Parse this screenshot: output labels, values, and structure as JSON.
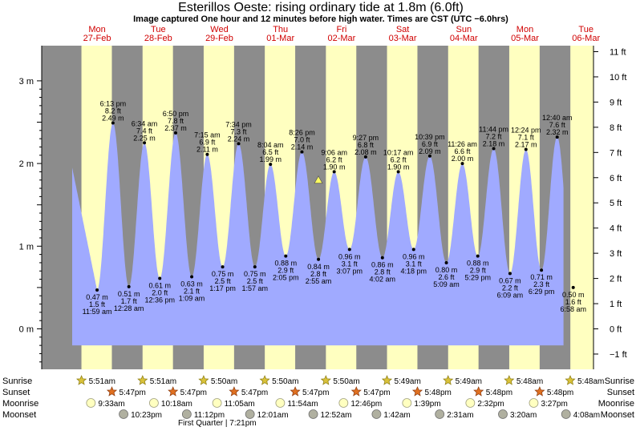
{
  "title": "Esterillos Oeste: rising  ordinary tide at 1.8m (6.0ft)",
  "subtitle": "Image captured One hour and 12 minutes before high water. Times are CST (UTC −6.0hrs)",
  "colors": {
    "night": "#8c8c8c",
    "day": "#ffffc0",
    "water": "#a0aaff",
    "day_label": "#d00000"
  },
  "days": [
    {
      "name": "Mon",
      "date": "27-Feb"
    },
    {
      "name": "Tue",
      "date": "28-Feb"
    },
    {
      "name": "Wed",
      "date": "29-Feb"
    },
    {
      "name": "Thu",
      "date": "01-Mar"
    },
    {
      "name": "Fri",
      "date": "02-Mar"
    },
    {
      "name": "Sat",
      "date": "03-Mar"
    },
    {
      "name": "Sun",
      "date": "04-Mar"
    },
    {
      "name": "Mon",
      "date": "05-Mar"
    },
    {
      "name": "Tue",
      "date": "06-Mar"
    }
  ],
  "chart_data": {
    "type": "area",
    "title": "Esterillos Oeste: rising  ordinary tide at 1.8m (6.0ft)",
    "ylabel_left_ticks": [
      "0 m",
      "1 m",
      "2 m",
      "3 m"
    ],
    "ylabel_right_ticks": [
      "−1 ft",
      "0 ft",
      "1 ft",
      "2 ft",
      "3 ft",
      "4 ft",
      "5 ft",
      "6 ft",
      "7 ft",
      "8 ft",
      "9 ft",
      "10 ft",
      "11 ft"
    ],
    "ylim_m": [
      -0.45,
      3.4
    ],
    "x_unit": "days since 27-Feb 00:00 CST",
    "xlim": [
      -0.08,
      9.0
    ],
    "extremes": [
      {
        "t": "11:59 am",
        "m": 0.47,
        "ft": "1.5 ft",
        "mlab": "0.47 m",
        "type": "low"
      },
      {
        "t": "6:13 pm",
        "m": 2.49,
        "ft": "8.2 ft",
        "mlab": "2.49 m",
        "type": "high"
      },
      {
        "t": "12:28 am",
        "m": 0.51,
        "ft": "1.7 ft",
        "mlab": "0.51 m",
        "type": "low"
      },
      {
        "t": "6:34 am",
        "m": 2.25,
        "ft": "7.4 ft",
        "mlab": "2.25 m",
        "type": "high"
      },
      {
        "t": "12:36 pm",
        "m": 0.61,
        "ft": "2.0 ft",
        "mlab": "0.61 m",
        "type": "low"
      },
      {
        "t": "6:50 pm",
        "m": 2.37,
        "ft": "7.8 ft",
        "mlab": "2.37 m",
        "type": "high"
      },
      {
        "t": "1:09 am",
        "m": 0.63,
        "ft": "2.1 ft",
        "mlab": "0.63 m",
        "type": "low"
      },
      {
        "t": "7:15 am",
        "m": 2.11,
        "ft": "6.9 ft",
        "mlab": "2.11 m",
        "type": "high"
      },
      {
        "t": "1:17 pm",
        "m": 0.75,
        "ft": "2.5 ft",
        "mlab": "0.75 m",
        "type": "low"
      },
      {
        "t": "7:34 pm",
        "m": 2.24,
        "ft": "7.3 ft",
        "mlab": "2.24 m",
        "type": "high"
      },
      {
        "t": "1:57 am",
        "m": 0.75,
        "ft": "2.5 ft",
        "mlab": "0.75 m",
        "type": "low"
      },
      {
        "t": "8:04 am",
        "m": 1.99,
        "ft": "6.5 ft",
        "mlab": "1.99 m",
        "type": "high"
      },
      {
        "t": "2:05 pm",
        "m": 0.88,
        "ft": "2.9 ft",
        "mlab": "0.88 m",
        "type": "low"
      },
      {
        "t": "8:26 pm",
        "m": 2.14,
        "ft": "7.0 ft",
        "mlab": "2.14 m",
        "type": "high"
      },
      {
        "t": "2:55 am",
        "m": 0.84,
        "ft": "2.8 ft",
        "mlab": "0.84 m",
        "type": "low"
      },
      {
        "t": "9:06 am",
        "m": 1.9,
        "ft": "6.2 ft",
        "mlab": "1.90 m",
        "type": "high"
      },
      {
        "t": "3:07 pm",
        "m": 0.96,
        "ft": "3.1 ft",
        "mlab": "0.96 m",
        "type": "low"
      },
      {
        "t": "9:27 pm",
        "m": 2.08,
        "ft": "6.8 ft",
        "mlab": "2.08 m",
        "type": "high"
      },
      {
        "t": "4:02 am",
        "m": 0.86,
        "ft": "2.8 ft",
        "mlab": "0.86 m",
        "type": "low"
      },
      {
        "t": "10:17 am",
        "m": 1.9,
        "ft": "6.2 ft",
        "mlab": "1.90 m",
        "type": "high"
      },
      {
        "t": "4:18 pm",
        "m": 0.96,
        "ft": "3.1 ft",
        "mlab": "0.96 m",
        "type": "low"
      },
      {
        "t": "10:39 pm",
        "m": 2.09,
        "ft": "6.9 ft",
        "mlab": "2.09 m",
        "type": "high"
      },
      {
        "t": "5:09 am",
        "m": 0.8,
        "ft": "2.6 ft",
        "mlab": "0.80 m",
        "type": "low"
      },
      {
        "t": "11:26 am",
        "m": 2.0,
        "ft": "6.6 ft",
        "mlab": "2.00 m",
        "type": "high"
      },
      {
        "t": "5:29 pm",
        "m": 0.88,
        "ft": "2.9 ft",
        "mlab": "0.88 m",
        "type": "low"
      },
      {
        "t": "11:44 pm",
        "m": 2.18,
        "ft": "7.2 ft",
        "mlab": "2.18 m",
        "type": "high"
      },
      {
        "t": "6:09 am",
        "m": 0.67,
        "ft": "2.2 ft",
        "mlab": "0.67 m",
        "type": "low"
      },
      {
        "t": "12:24 pm",
        "m": 2.17,
        "ft": "7.1 ft",
        "mlab": "2.17 m",
        "type": "high"
      },
      {
        "t": "6:29 pm",
        "m": 0.71,
        "ft": "2.3 ft",
        "mlab": "0.71 m",
        "type": "low"
      },
      {
        "t": "12:40 am",
        "m": 2.32,
        "ft": "7.6 ft",
        "mlab": "2.32 m",
        "type": "high"
      },
      {
        "t": "6:58 am",
        "m": 0.5,
        "ft": "1.6 ft",
        "mlab": "0.50 m",
        "type": "low"
      }
    ],
    "current_tide_m": 1.8,
    "legend": "none",
    "grid": false
  },
  "events": {
    "sunrise": {
      "label": "Sunrise",
      "items": [
        "5:51am",
        "5:51am",
        "5:50am",
        "5:50am",
        "5:50am",
        "5:49am",
        "5:49am",
        "5:48am",
        "5:48am"
      ]
    },
    "sunset": {
      "label": "Sunset",
      "items": [
        "5:47pm",
        "5:47pm",
        "5:47pm",
        "5:47pm",
        "5:47pm",
        "5:48pm",
        "5:48pm",
        "5:48pm"
      ]
    },
    "moonrise": {
      "label": "Moonrise",
      "items": [
        "9:33am",
        "10:18am",
        "11:05am",
        "11:54am",
        "12:46pm",
        "1:39pm",
        "2:32pm",
        "3:27pm"
      ]
    },
    "moonset": {
      "label": "Moonset",
      "items": [
        "10:23pm",
        "11:12pm",
        "12:01am",
        "12:52am",
        "1:42am",
        "2:31am",
        "3:20am",
        "4:08am"
      ]
    },
    "moon_phase": "First Quarter | 7:21pm"
  }
}
